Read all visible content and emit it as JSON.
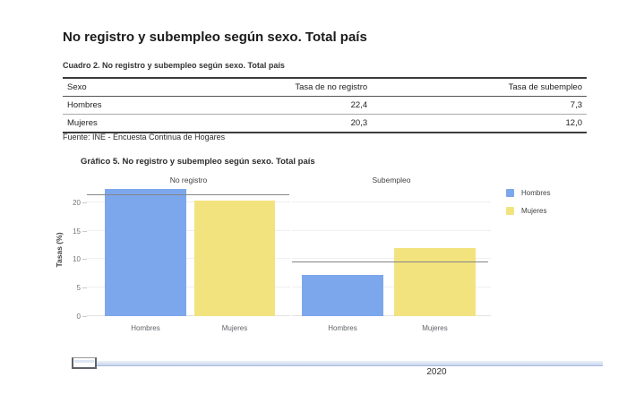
{
  "page": {
    "title": "No registro y subempleo según sexo. Total país"
  },
  "table": {
    "caption": "Cuadro 2. No registro y subempleo según sexo. Total país",
    "columns": [
      "Sexo",
      "Tasa de no registro",
      "Tasa de subempleo"
    ],
    "rows": [
      [
        "Hombres",
        "22,4",
        "7,3"
      ],
      [
        "Mujeres",
        "20,3",
        "12,0"
      ]
    ],
    "source": "Fuente: INE - Encuesta Continua de Hogares"
  },
  "chart": {
    "title": "Gráfico 5. No registro y subempleo según sexo. Total país"
  },
  "chart_data": {
    "type": "bar",
    "title": "Gráfico 5. No registro y subempleo según sexo. Total país",
    "ylabel": "Tasas (%)",
    "yticks": [
      0,
      5,
      10,
      15,
      20
    ],
    "ylim": [
      0,
      23.1
    ],
    "grid": "faint",
    "legend_position": "right",
    "facets": [
      {
        "title": "No registro",
        "categories": [
          "Hombres",
          "Mujeres"
        ],
        "values": [
          22.4,
          20.3
        ],
        "reference_line": 21.35
      },
      {
        "title": "Subempleo",
        "categories": [
          "Hombres",
          "Mujeres"
        ],
        "values": [
          7.3,
          12.0
        ],
        "reference_line": 9.65
      }
    ],
    "series_colors": [
      {
        "name": "Hombres",
        "color": "#7da7ec"
      },
      {
        "name": "Mujeres",
        "color": "#f2e37e"
      }
    ],
    "reference_line_color": "#858585"
  },
  "slider": {
    "year_label": "2020"
  }
}
